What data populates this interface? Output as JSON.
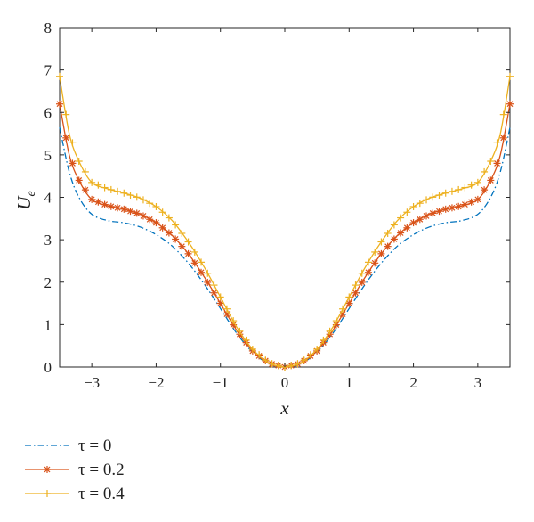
{
  "chart_data": {
    "type": "line",
    "xlabel": "x",
    "ylabel": "U",
    "ylabel_subscript": "e",
    "xlim": [
      -3.5,
      3.5
    ],
    "ylim": [
      0,
      8
    ],
    "xticks": [
      -3,
      -2,
      -1,
      0,
      1,
      2,
      3
    ],
    "xtick_labels": [
      "−3",
      "−2",
      "−1",
      "0",
      "1",
      "2",
      "3"
    ],
    "yticks": [
      0,
      1,
      2,
      3,
      4,
      5,
      6,
      7,
      8
    ],
    "ytick_labels": [
      "0",
      "1",
      "2",
      "3",
      "4",
      "5",
      "6",
      "7",
      "8"
    ],
    "grid": false,
    "legend_position": "below-left",
    "x": [
      0,
      0.25,
      0.5,
      0.75,
      1.0,
      1.25,
      1.5,
      1.75,
      2.0,
      2.25,
      2.5,
      2.75,
      3.0,
      3.2,
      3.35,
      3.5
    ],
    "symmetric_about_zero": true,
    "series": [
      {
        "name": "τ = 0",
        "color": "#0072BD",
        "line": "dashdot",
        "marker": "none",
        "values": [
          0,
          0.08,
          0.35,
          0.8,
          1.38,
          1.95,
          2.45,
          2.85,
          3.12,
          3.3,
          3.4,
          3.45,
          3.6,
          4.0,
          4.6,
          5.65
        ]
      },
      {
        "name": "τ = 0.2",
        "color": "#D95319",
        "line": "solid",
        "marker": "asterisk",
        "values": [
          0,
          0.09,
          0.38,
          0.87,
          1.5,
          2.12,
          2.67,
          3.1,
          3.4,
          3.6,
          3.72,
          3.8,
          3.95,
          4.4,
          5.0,
          6.2
        ]
      },
      {
        "name": "τ = 0.4",
        "color": "#EDB120",
        "line": "solid",
        "marker": "plus",
        "values": [
          0,
          0.1,
          0.42,
          0.95,
          1.65,
          2.35,
          2.95,
          3.45,
          3.78,
          3.98,
          4.1,
          4.2,
          4.35,
          4.85,
          5.5,
          6.85
        ]
      }
    ]
  }
}
